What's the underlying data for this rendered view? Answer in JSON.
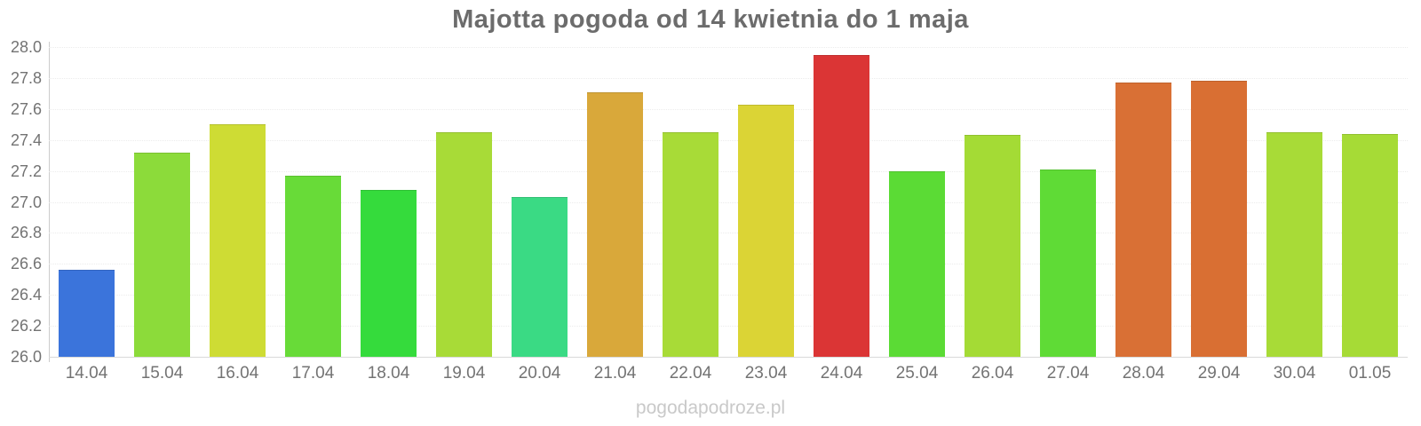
{
  "title": "Majotta pogoda od 14 kwietnia do 1 maja",
  "watermark": "pogodapodroze.pl",
  "chart_data": {
    "type": "bar",
    "title": "Majotta pogoda od 14 kwietnia do 1 maja",
    "categories": [
      "14.04",
      "15.04",
      "16.04",
      "17.04",
      "18.04",
      "19.04",
      "20.04",
      "21.04",
      "22.04",
      "23.04",
      "24.04",
      "25.04",
      "26.04",
      "27.04",
      "28.04",
      "29.04",
      "30.04",
      "01.05"
    ],
    "values": [
      26.56,
      27.32,
      27.5,
      27.17,
      27.08,
      27.45,
      27.03,
      27.71,
      27.45,
      27.63,
      27.95,
      27.2,
      27.43,
      27.21,
      27.77,
      27.78,
      27.45,
      27.44
    ],
    "bar_colors": [
      "#3b74db",
      "#8cdb3a",
      "#cedc34",
      "#68db38",
      "#35db3c",
      "#a8db37",
      "#3ada84",
      "#d9a83a",
      "#a8db37",
      "#dbd435",
      "#db3535",
      "#5bdb35",
      "#a4db35",
      "#5fdb36",
      "#d97035",
      "#d96f33",
      "#a8db37",
      "#a6db36"
    ],
    "xlabel": "",
    "ylabel": "",
    "ylim": [
      26.0,
      28.0
    ],
    "ytick_step": 0.2,
    "ytick_labels": [
      "26.0",
      "26.2",
      "26.4",
      "26.6",
      "26.8",
      "27.0",
      "27.2",
      "27.4",
      "27.6",
      "27.8",
      "28.0"
    ],
    "grid": true,
    "legend": false,
    "colors": {
      "title_text": "#6c6c6c",
      "axis_line": "#cccccc",
      "tick_text": "#737373",
      "gridline": "#ececec",
      "baseline": "#d9d9d9",
      "watermark_text": "#c9c9c9",
      "background": "#ffffff"
    }
  }
}
